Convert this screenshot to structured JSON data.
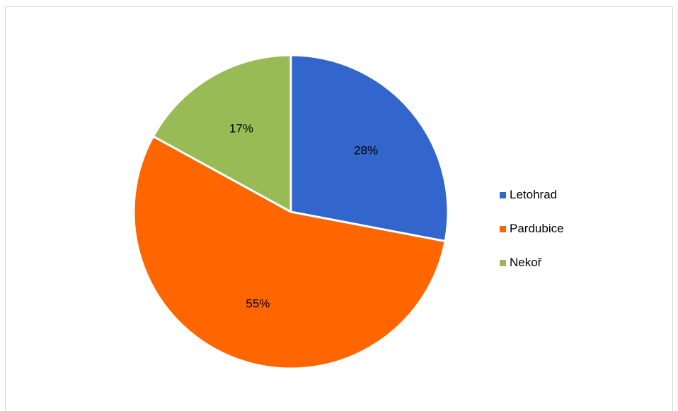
{
  "chart_data": {
    "type": "pie",
    "slices": [
      {
        "label": "Letohrad",
        "value": 28,
        "display": "28%",
        "color": "#3366CC"
      },
      {
        "label": "Pardubice",
        "value": 55,
        "display": "55%",
        "color": "#FF6600"
      },
      {
        "label": "Nekoř",
        "value": 17,
        "display": "17%",
        "color": "#99BB55"
      }
    ],
    "legend_position": "right",
    "start_angle": "top",
    "direction": "clockwise"
  }
}
